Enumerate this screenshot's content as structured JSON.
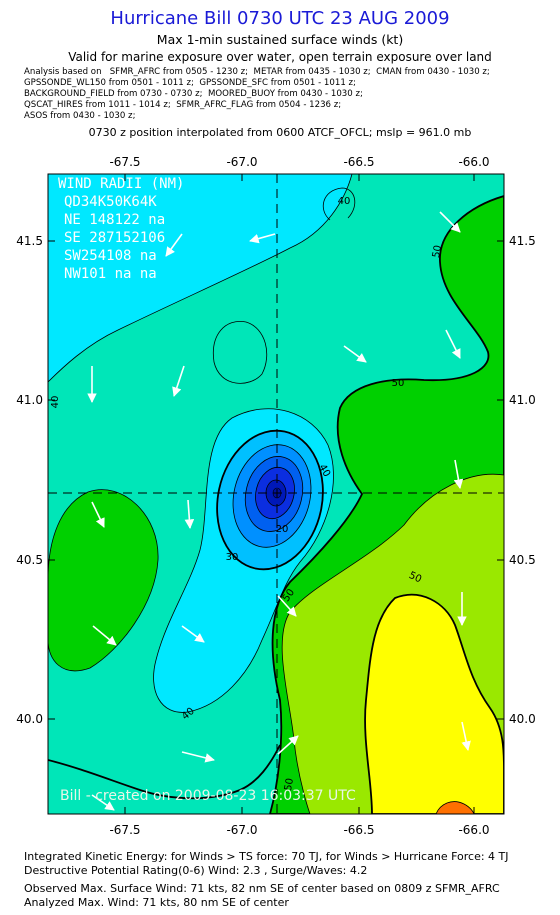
{
  "header": {
    "title": "Hurricane Bill 0730 UTC 23 AUG 2009",
    "subtitle": "Max 1-min sustained surface winds (kt)",
    "valid": "Valid for marine exposure over water, open terrain exposure over land",
    "analysis_lines": [
      "Analysis based on   SFMR_AFRC from 0505 - 1230 z;  METAR from 0435 - 1030 z;  CMAN from 0430 - 1030 z;",
      "GPSSONDE_WL150 from 0501 - 1011 z;  GPSSONDE_SFC from 0501 - 1011 z;",
      "BACKGROUND_FIELD from 0730 - 0730 z;  MOORED_BUOY from 0430 - 1030 z;",
      "QSCAT_HIRES from 1011 - 1014 z;  SFMR_AFRC_FLAG from 0504 - 1236 z;",
      "ASOS from 0430 - 1030 z;"
    ],
    "position_note": "0730 z position interpolated from 0600 ATCF_OFCL; mslp = 961.0 mb"
  },
  "map": {
    "x_ticks": [
      "-67.5",
      "-67.0",
      "-66.5",
      "-66.0"
    ],
    "y_ticks": [
      "41.5",
      "41.0",
      "40.5",
      "40.0"
    ],
    "contour_labels": [
      "40",
      "50",
      "40",
      "40",
      "50",
      "30",
      "20",
      "50",
      "50",
      "40",
      "50"
    ],
    "wind_radii": {
      "title": "WIND RADII (NM)",
      "header": "QD34K50K64K",
      "rows": [
        "NE 148122 na",
        "SE 287152106",
        "SW254108 na",
        "NW101 na na"
      ]
    },
    "credit": "Bill - created on 2009-08-23 16:03:37 UTC",
    "colors": {
      "c20": "#0b2ee0",
      "c30": "#00e8ff",
      "c40": "#00e6b8",
      "c50": "#00d000",
      "c60": "#9ae800",
      "c65": "#ffff00",
      "c70": "#ff7000"
    }
  },
  "footer": {
    "lines": [
      "Integrated Kinetic Energy:  for Winds > TS force: 70 TJ,  for Winds > Hurricane Force: 4 TJ",
      "Destructive Potential Rating(0-6)   Wind: 2.3 , Surge/Waves: 4.2",
      "Observed Max. Surface Wind: 71 kts, 82 nm SE of center based on 0809 z SFMR_AFRC",
      "Analyzed Max. Wind: 71 kts, 80 nm SE of center"
    ]
  }
}
